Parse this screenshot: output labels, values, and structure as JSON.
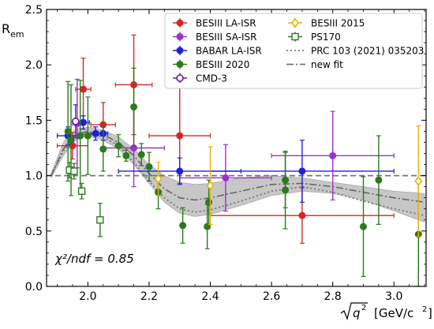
{
  "chart_data": {
    "type": "scatter",
    "ylabel_main": "R",
    "ylabel_sub": "em",
    "xlabel_main": "q",
    "xlabel_units": "[GeV/c",
    "xlabel_exp": "2",
    "xlabel_close": "]",
    "xlim": [
      1.865,
      3.105
    ],
    "ylim": [
      0.0,
      2.5
    ],
    "x_ticks": [
      2.0,
      2.2,
      2.4,
      2.6,
      2.8,
      3.0
    ],
    "x_tick_labels": [
      "2.0",
      "2.2",
      "2.4",
      "2.6",
      "2.8",
      "3.0"
    ],
    "y_ticks": [
      0.0,
      0.5,
      1.0,
      1.5,
      2.0,
      2.5
    ],
    "y_tick_labels": [
      "0.0",
      "0.5",
      "1.0",
      "1.5",
      "2.0",
      "2.5"
    ],
    "annotation": "χ²/ndf = 0.85",
    "reference_line_y": 1.0,
    "legend": {
      "placement": "top-right",
      "entries": [
        {
          "label": "BESIII LA-ISR",
          "color": "#d62728",
          "style": "marker-circle"
        },
        {
          "label": "BESIII SA-ISR",
          "color": "#9b30d0",
          "style": "marker-circle"
        },
        {
          "label": "BABAR LA-ISR",
          "color": "#1f1fe0",
          "style": "marker-circle"
        },
        {
          "label": "BESIII 2020",
          "color": "#2a7a1e",
          "style": "marker-circle"
        },
        {
          "label": "CMD-3",
          "color": "#6a1b9a",
          "style": "marker-open-circle"
        },
        {
          "label": "BESIII 2015",
          "color": "#e8b400",
          "style": "marker-diamond"
        },
        {
          "label": "PS170",
          "color": "#2a7a1e",
          "style": "marker-open-square"
        },
        {
          "label": "PRC 103 (2021) 035203",
          "color": "#777777",
          "style": "dotted"
        },
        {
          "label": "new fit",
          "color": "#666666",
          "style": "dashdot"
        }
      ]
    },
    "series": [
      {
        "name": "BESIII LA-ISR",
        "color": "#d62728",
        "marker": "circle",
        "points": [
          {
            "x": 1.95,
            "y": 1.27,
            "xerr": 0.05,
            "yerr": 0.12
          },
          {
            "x": 1.985,
            "y": 1.78,
            "xerr": 0.025,
            "yerr": 0.28
          },
          {
            "x": 2.05,
            "y": 1.46,
            "xerr": 0.04,
            "yerr": 0.2
          },
          {
            "x": 2.15,
            "y": 1.82,
            "xerr": 0.06,
            "yerr": 0.45
          },
          {
            "x": 2.3,
            "y": 1.36,
            "xerr": 0.1,
            "yerr": 0.43
          },
          {
            "x": 2.7,
            "y": 0.64,
            "xerr": 0.3,
            "yerr": 0.25
          }
        ]
      },
      {
        "name": "BESIII SA-ISR",
        "color": "#9b30d0",
        "marker": "circle",
        "points": [
          {
            "x": 1.965,
            "y": 1.47,
            "xerr": 0.015,
            "yerr": 0.4
          },
          {
            "x": 2.15,
            "y": 1.25,
            "xerr": 0.1,
            "yerr": 0.35
          },
          {
            "x": 2.45,
            "y": 0.98,
            "xerr": 0.15,
            "yerr": 0.3
          },
          {
            "x": 2.8,
            "y": 1.18,
            "xerr": 0.2,
            "yerr": 0.4
          }
        ]
      },
      {
        "name": "BABAR LA-ISR",
        "color": "#1f1fe0",
        "marker": "circle",
        "points": [
          {
            "x": 1.935,
            "y": 1.36,
            "xerr": 0.035,
            "yerr": 0.08
          },
          {
            "x": 1.985,
            "y": 1.48,
            "xerr": 0.02,
            "yerr": 0.06
          },
          {
            "x": 2.025,
            "y": 1.38,
            "xerr": 0.025,
            "yerr": 0.06
          },
          {
            "x": 2.05,
            "y": 1.38,
            "xerr": 0.015,
            "yerr": 0.06
          },
          {
            "x": 2.3,
            "y": 1.04,
            "xerr": 0.2,
            "yerr": 0.12
          },
          {
            "x": 2.7,
            "y": 1.04,
            "xerr": 0.3,
            "yerr": 0.28
          }
        ]
      },
      {
        "name": "BESIII 2020",
        "color": "#2a7a1e",
        "marker": "circle",
        "points": [
          {
            "x": 1.935,
            "y": 1.4,
            "xerr": 0,
            "yerr": 0.45
          },
          {
            "x": 1.945,
            "y": 1.32,
            "xerr": 0,
            "yerr": 0.5
          },
          {
            "x": 1.975,
            "y": 1.36,
            "xerr": 0,
            "yerr": 0.5
          },
          {
            "x": 2.0,
            "y": 1.36,
            "xerr": 0,
            "yerr": 0.35
          },
          {
            "x": 2.05,
            "y": 1.24,
            "xerr": 0,
            "yerr": 0.2
          },
          {
            "x": 2.1,
            "y": 1.27,
            "xerr": 0,
            "yerr": 0.1
          },
          {
            "x": 2.125,
            "y": 1.18,
            "xerr": 0,
            "yerr": 0.05
          },
          {
            "x": 2.15,
            "y": 1.62,
            "xerr": 0,
            "yerr": 0.35
          },
          {
            "x": 2.175,
            "y": 1.19,
            "xerr": 0,
            "yerr": 0.1
          },
          {
            "x": 2.2,
            "y": 1.08,
            "xerr": 0,
            "yerr": 0.13
          },
          {
            "x": 2.23,
            "y": 0.85,
            "xerr": 0,
            "yerr": 0.15
          },
          {
            "x": 2.31,
            "y": 0.55,
            "xerr": 0,
            "yerr": 0.16
          },
          {
            "x": 2.39,
            "y": 0.54,
            "xerr": 0,
            "yerr": 0.2
          },
          {
            "x": 2.395,
            "y": 0.76,
            "xerr": 0,
            "yerr": 0.2
          },
          {
            "x": 2.645,
            "y": 0.87,
            "xerr": 0,
            "yerr": 0.35
          },
          {
            "x": 2.645,
            "y": 0.96,
            "xerr": 0,
            "yerr": 0.25
          },
          {
            "x": 2.9,
            "y": 0.54,
            "xerr": 0,
            "yerr": 0.45
          },
          {
            "x": 2.95,
            "y": 0.96,
            "xerr": 0,
            "yerr": 0.4
          },
          {
            "x": 3.08,
            "y": 0.47,
            "xerr": 0,
            "yerr": 0.5
          }
        ]
      },
      {
        "name": "CMD-3",
        "color": "#6a1b9a",
        "marker": "open-circle",
        "points": [
          {
            "x": 1.96,
            "y": 1.49,
            "xerr": 0.005,
            "yerr": 0.15
          }
        ]
      },
      {
        "name": "BESIII 2015",
        "color": "#e8b400",
        "marker": "diamond",
        "points": [
          {
            "x": 2.23,
            "y": 0.97,
            "xerr": 0,
            "yerr": 0.15
          },
          {
            "x": 2.4,
            "y": 0.91,
            "xerr": 0,
            "yerr": 0.35
          },
          {
            "x": 3.08,
            "y": 0.95,
            "xerr": 0,
            "yerr": 0.5
          }
        ]
      },
      {
        "name": "PS170",
        "color": "#2a7a1e",
        "marker": "open-square",
        "points": [
          {
            "x": 1.94,
            "y": 1.05,
            "xerr": 0,
            "yerr": 0.07
          },
          {
            "x": 1.955,
            "y": 1.04,
            "xerr": 0,
            "yerr": 0.07
          },
          {
            "x": 1.98,
            "y": 0.86,
            "xerr": 0,
            "yerr": 0.07
          },
          {
            "x": 2.04,
            "y": 0.6,
            "xerr": 0,
            "yerr": 0.15
          }
        ]
      }
    ],
    "curves": {
      "prc": [
        [
          1.88,
          1.0
        ],
        [
          1.92,
          1.22
        ],
        [
          1.96,
          1.36
        ],
        [
          2.0,
          1.38
        ],
        [
          2.05,
          1.35
        ],
        [
          2.1,
          1.27
        ],
        [
          2.15,
          1.12
        ],
        [
          2.2,
          0.95
        ],
        [
          2.25,
          0.8
        ],
        [
          2.3,
          0.7
        ],
        [
          2.35,
          0.67
        ],
        [
          2.4,
          0.69
        ],
        [
          2.5,
          0.77
        ],
        [
          2.6,
          0.86
        ],
        [
          2.7,
          0.9
        ],
        [
          2.8,
          0.85
        ],
        [
          2.9,
          0.77
        ],
        [
          3.0,
          0.7
        ],
        [
          3.1,
          0.64
        ]
      ],
      "newfit": [
        [
          1.88,
          1.0
        ],
        [
          1.92,
          1.24
        ],
        [
          1.96,
          1.37
        ],
        [
          2.0,
          1.4
        ],
        [
          2.05,
          1.37
        ],
        [
          2.1,
          1.3
        ],
        [
          2.15,
          1.18
        ],
        [
          2.2,
          1.02
        ],
        [
          2.25,
          0.88
        ],
        [
          2.3,
          0.8
        ],
        [
          2.35,
          0.78
        ],
        [
          2.4,
          0.8
        ],
        [
          2.5,
          0.86
        ],
        [
          2.6,
          0.92
        ],
        [
          2.7,
          0.93
        ],
        [
          2.8,
          0.9
        ],
        [
          2.9,
          0.85
        ],
        [
          3.0,
          0.8
        ],
        [
          3.1,
          0.76
        ]
      ],
      "band_upper": [
        [
          1.88,
          1.02
        ],
        [
          1.92,
          1.3
        ],
        [
          1.96,
          1.42
        ],
        [
          2.0,
          1.44
        ],
        [
          2.05,
          1.41
        ],
        [
          2.1,
          1.35
        ],
        [
          2.15,
          1.24
        ],
        [
          2.2,
          1.1
        ],
        [
          2.25,
          1.0
        ],
        [
          2.3,
          0.94
        ],
        [
          2.35,
          0.92
        ],
        [
          2.4,
          0.93
        ],
        [
          2.5,
          0.98
        ],
        [
          2.6,
          1.0
        ],
        [
          2.7,
          0.98
        ],
        [
          2.8,
          0.94
        ],
        [
          2.9,
          0.9
        ],
        [
          3.0,
          0.86
        ],
        [
          3.1,
          0.84
        ]
      ],
      "band_lower": [
        [
          1.88,
          0.98
        ],
        [
          1.92,
          1.18
        ],
        [
          1.96,
          1.32
        ],
        [
          2.0,
          1.36
        ],
        [
          2.05,
          1.32
        ],
        [
          2.1,
          1.24
        ],
        [
          2.15,
          1.1
        ],
        [
          2.2,
          0.93
        ],
        [
          2.25,
          0.76
        ],
        [
          2.3,
          0.66
        ],
        [
          2.35,
          0.63
        ],
        [
          2.4,
          0.65
        ],
        [
          2.5,
          0.73
        ],
        [
          2.6,
          0.82
        ],
        [
          2.7,
          0.86
        ],
        [
          2.8,
          0.84
        ],
        [
          2.9,
          0.78
        ],
        [
          3.0,
          0.68
        ],
        [
          3.1,
          0.58
        ]
      ]
    }
  }
}
